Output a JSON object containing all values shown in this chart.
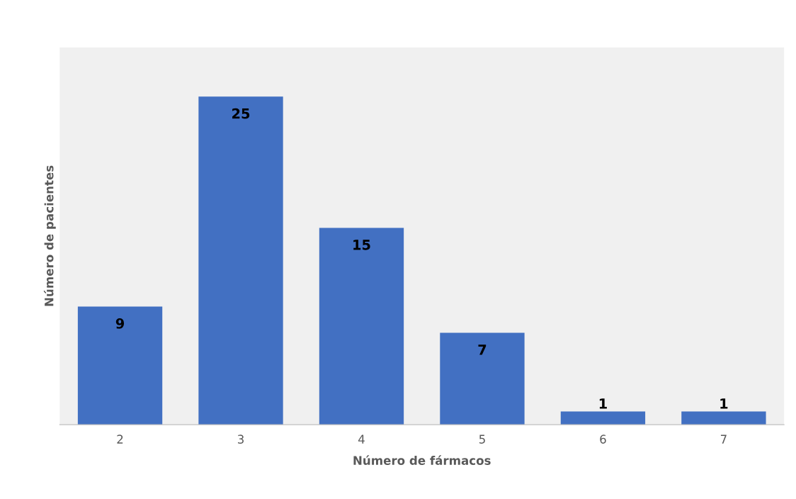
{
  "chart_data": {
    "type": "bar",
    "xlabel": "Número de fármacos",
    "ylabel": "Número de pacientes",
    "categories": [
      "2",
      "3",
      "4",
      "5",
      "6",
      "7"
    ],
    "values": [
      9,
      25,
      15,
      7,
      1,
      1
    ],
    "color": "#4270c2",
    "data_labels": true,
    "grid": false,
    "legend": false
  }
}
